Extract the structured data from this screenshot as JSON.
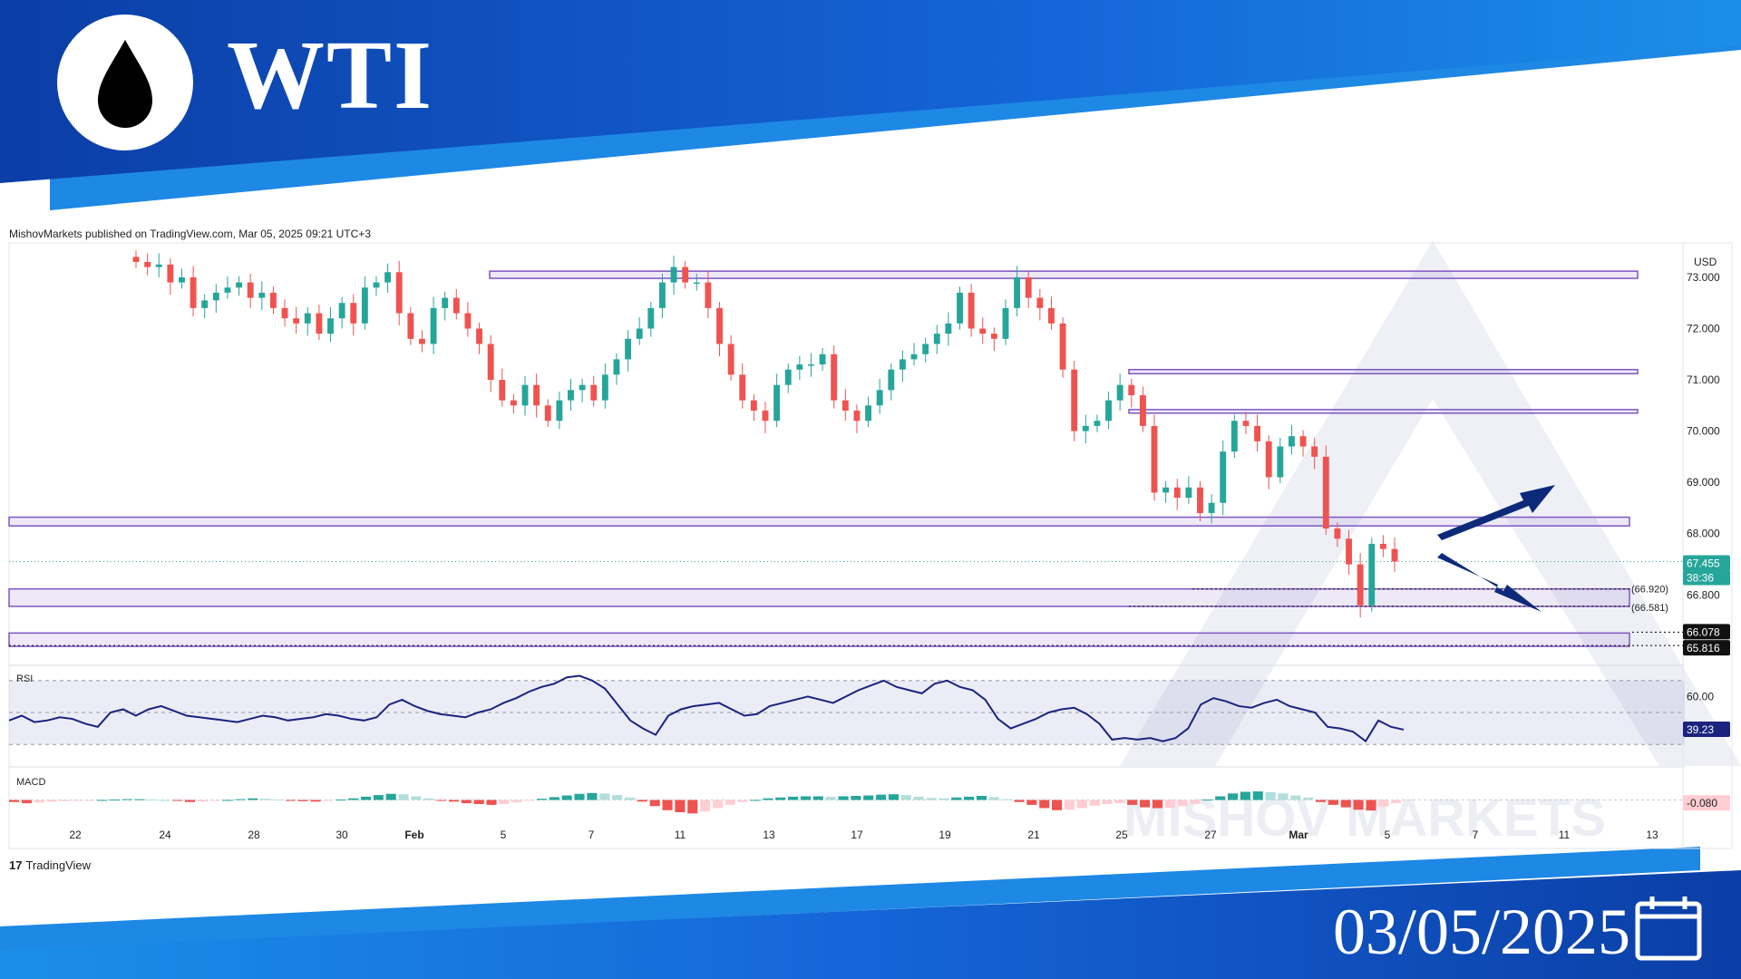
{
  "header": {
    "title": "WTI",
    "date": "03/05/2025",
    "publish_info": "MishovMarkets published on TradingView.com, Mar 05, 2025 09:21 UTC+3",
    "footer_logo": "TradingView",
    "icons": [
      "oil-drop-icon",
      "calendar-icon",
      "tradingview-logo-icon"
    ],
    "colors": {
      "banner_dark": "#0b3ea6",
      "banner_light": "#1a8fe8",
      "accent": "#1e88e5"
    }
  },
  "chart_data": [
    {
      "type": "candlestick",
      "currency": "USD",
      "y_ticks": [
        "73.000",
        "72.000",
        "71.000",
        "70.000",
        "69.000",
        "68.000",
        "66.800"
      ],
      "ylim": [
        65.5,
        73.6
      ],
      "x_ticks": [
        "22",
        "24",
        "28",
        "30",
        "Feb",
        "5",
        "7",
        "11",
        "13",
        "17",
        "19",
        "21",
        "25",
        "27",
        "Mar",
        "5",
        "7",
        "11",
        "13"
      ],
      "last_price": "67.455",
      "countdown": "38:36",
      "price_labels": [
        "66.078",
        "65.816"
      ],
      "level_labels": [
        "(66.920)",
        "(66.581)"
      ],
      "closes": [
        73.3,
        73.2,
        73.25,
        72.9,
        73.0,
        72.4,
        72.55,
        72.7,
        72.8,
        72.9,
        72.6,
        72.7,
        72.4,
        72.2,
        72.1,
        72.3,
        71.9,
        72.2,
        72.5,
        72.1,
        72.8,
        72.9,
        73.1,
        72.3,
        71.8,
        71.7,
        72.4,
        72.6,
        72.3,
        72.0,
        71.7,
        71.0,
        70.6,
        70.5,
        70.9,
        70.5,
        70.2,
        70.6,
        70.8,
        70.9,
        70.6,
        71.1,
        71.4,
        71.8,
        72.0,
        72.4,
        72.9,
        73.2,
        72.9,
        72.9,
        72.4,
        71.7,
        71.1,
        70.6,
        70.4,
        70.2,
        70.9,
        71.2,
        71.3,
        71.3,
        71.5,
        70.6,
        70.4,
        70.2,
        70.5,
        70.8,
        71.2,
        71.4,
        71.5,
        71.7,
        71.9,
        72.1,
        72.7,
        72.0,
        71.9,
        71.8,
        72.4,
        73.0,
        72.6,
        72.4,
        72.1,
        71.2,
        70.0,
        70.1,
        70.2,
        70.6,
        70.9,
        70.7,
        70.1,
        68.8,
        68.9,
        68.7,
        68.9,
        68.4,
        68.6,
        69.6,
        70.2,
        70.1,
        69.8,
        69.1,
        69.7,
        69.9,
        69.7,
        69.5,
        68.1,
        67.9,
        67.4,
        66.6,
        67.8,
        67.7,
        67.455
      ],
      "levels": [
        {
          "name": "resistance-73",
          "from": 73.12,
          "to": 72.98
        },
        {
          "name": "resistance-71-2",
          "from": 71.2,
          "to": 71.12
        },
        {
          "name": "resistance-70-4",
          "from": 70.42,
          "to": 70.35
        },
        {
          "name": "zone-68-2",
          "from": 68.32,
          "to": 68.15
        },
        {
          "name": "zone-66-9",
          "from": 66.92,
          "to": 66.58
        },
        {
          "name": "zone-66-0",
          "from": 66.06,
          "to": 65.8
        }
      ],
      "annotations": [
        "up-arrow",
        "down-arrow"
      ],
      "watermark": "MISHOV MARKETS"
    },
    {
      "type": "line",
      "name": "RSI",
      "y_ticks": [
        "60.00"
      ],
      "value_label": "39.23",
      "ylim": [
        25,
        75
      ],
      "bands": [
        70,
        50,
        30
      ],
      "values": [
        45,
        48,
        44,
        45,
        47,
        46,
        43,
        41,
        50,
        52,
        48,
        52,
        54,
        51,
        48,
        47,
        46,
        45,
        44,
        46,
        48,
        47,
        45,
        46,
        47,
        49,
        48,
        46,
        45,
        47,
        55,
        58,
        54,
        51,
        49,
        48,
        47,
        50,
        52,
        56,
        59,
        63,
        66,
        68,
        72,
        73,
        70,
        65,
        55,
        45,
        40,
        36,
        48,
        52,
        54,
        55,
        56,
        52,
        48,
        49,
        54,
        56,
        58,
        60,
        58,
        56,
        60,
        64,
        67,
        70,
        66,
        64,
        62,
        68,
        70,
        66,
        64,
        58,
        46,
        40,
        43,
        46,
        50,
        52,
        53,
        49,
        43,
        33,
        34,
        33,
        34,
        32,
        34,
        40,
        55,
        59,
        57,
        54,
        53,
        56,
        58,
        54,
        52,
        50,
        41,
        40,
        38,
        32,
        45,
        41,
        39.23
      ]
    },
    {
      "type": "bar",
      "name": "MACD",
      "value_label": "-0.080",
      "ylim": [
        -0.5,
        0.5
      ],
      "values": [
        -0.05,
        -0.08,
        -0.06,
        -0.04,
        -0.03,
        -0.02,
        -0.01,
        0.0,
        0.01,
        0.02,
        0.02,
        0.01,
        0.0,
        -0.02,
        -0.05,
        -0.04,
        -0.02,
        0.0,
        0.02,
        0.04,
        0.03,
        0.01,
        -0.01,
        -0.03,
        -0.04,
        -0.02,
        0.01,
        0.04,
        0.08,
        0.12,
        0.15,
        0.14,
        0.09,
        0.04,
        -0.01,
        -0.04,
        -0.08,
        -0.1,
        -0.12,
        -0.1,
        -0.06,
        -0.02,
        0.03,
        0.07,
        0.11,
        0.15,
        0.17,
        0.16,
        0.12,
        0.06,
        -0.04,
        -0.15,
        -0.25,
        -0.3,
        -0.33,
        -0.28,
        -0.2,
        -0.12,
        -0.05,
        0.0,
        0.04,
        0.06,
        0.08,
        0.09,
        0.09,
        0.08,
        0.09,
        0.1,
        0.11,
        0.13,
        0.14,
        0.12,
        0.08,
        0.05,
        0.04,
        0.06,
        0.08,
        0.1,
        0.07,
        0.02,
        -0.05,
        -0.12,
        -0.2,
        -0.25,
        -0.24,
        -0.2,
        -0.14,
        -0.1,
        -0.08,
        -0.12,
        -0.18,
        -0.2,
        -0.19,
        -0.15,
        -0.09,
        0.01,
        0.09,
        0.16,
        0.2,
        0.21,
        0.19,
        0.16,
        0.11,
        0.06,
        -0.05,
        -0.12,
        -0.18,
        -0.24,
        -0.26,
        -0.16,
        -0.08
      ]
    }
  ]
}
